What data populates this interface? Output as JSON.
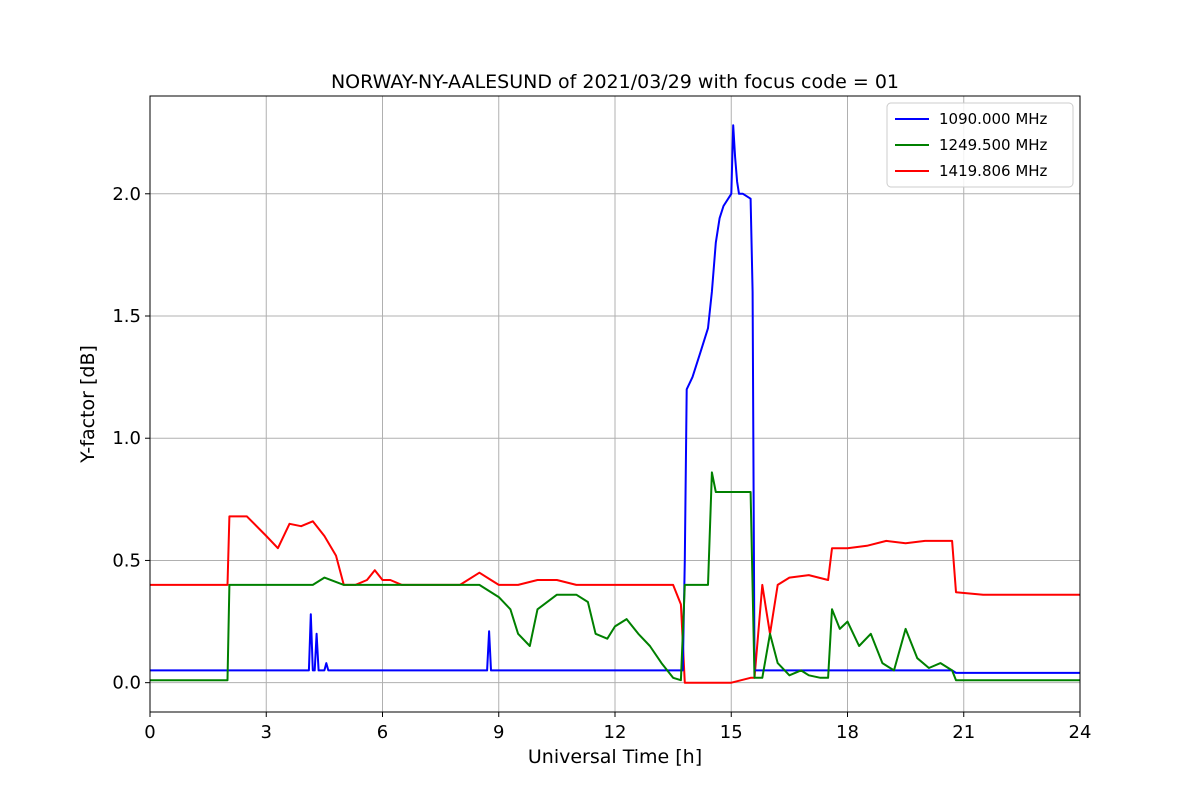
{
  "chart_data": {
    "type": "line",
    "title": "NORWAY-NY-AALESUND of 2021/03/29 with focus code = 01",
    "xlabel": "Universal Time [h]",
    "ylabel": "Y-factor [dB]",
    "xlim": [
      0,
      24
    ],
    "ylim": [
      -0.12,
      2.4
    ],
    "xticks": [
      0,
      3,
      6,
      9,
      12,
      15,
      18,
      21,
      24
    ],
    "xtick_labels": [
      "0",
      "3",
      "6",
      "9",
      "12",
      "15",
      "18",
      "21",
      "24"
    ],
    "yticks": [
      0.0,
      0.5,
      1.0,
      1.5,
      2.0
    ],
    "ytick_labels": [
      "0.0",
      "0.5",
      "1.0",
      "1.5",
      "2.0"
    ],
    "grid": true,
    "legend_position": "top-right",
    "series": [
      {
        "name": "1090.000 MHz",
        "color": "#0000ff",
        "x": [
          0,
          0.3,
          0.5,
          1.5,
          2.0,
          2.05,
          4.1,
          4.15,
          4.2,
          4.25,
          4.3,
          4.35,
          4.4,
          4.45,
          4.5,
          4.55,
          4.6,
          5.0,
          8.7,
          8.75,
          8.8,
          9.0,
          9.05,
          9.1,
          9.5,
          13.4,
          13.75,
          13.8,
          13.85,
          14.0,
          14.2,
          14.4,
          14.5,
          14.6,
          14.7,
          14.8,
          15.0,
          15.05,
          15.1,
          15.15,
          15.2,
          15.3,
          15.5,
          15.55,
          15.6,
          15.7,
          16.0,
          20.7,
          20.8,
          21.0,
          24
        ],
        "y": [
          0.05,
          0.05,
          0.05,
          0.05,
          0.05,
          0.05,
          0.05,
          0.28,
          0.05,
          0.05,
          0.2,
          0.05,
          0.05,
          0.05,
          0.05,
          0.08,
          0.05,
          0.05,
          0.05,
          0.21,
          0.05,
          0.05,
          0.05,
          0.05,
          0.05,
          0.05,
          0.05,
          0.5,
          1.2,
          1.25,
          1.35,
          1.45,
          1.6,
          1.8,
          1.9,
          1.95,
          2.0,
          2.28,
          2.15,
          2.05,
          2.0,
          2.0,
          1.98,
          1.6,
          0.05,
          0.05,
          0.05,
          0.05,
          0.04,
          0.04,
          0.04
        ]
      },
      {
        "name": "1249.500 MHz",
        "color": "#008000",
        "x": [
          0,
          2.0,
          2.05,
          4.2,
          4.5,
          5.0,
          8.5,
          9.0,
          9.3,
          9.5,
          9.8,
          10.0,
          10.5,
          11.0,
          11.3,
          11.5,
          11.8,
          12.0,
          12.3,
          12.6,
          12.9,
          13.2,
          13.5,
          13.7,
          13.8,
          14.0,
          14.4,
          14.5,
          14.6,
          14.8,
          15.0,
          15.5,
          15.6,
          15.8,
          16.0,
          16.2,
          16.5,
          16.8,
          17.0,
          17.3,
          17.5,
          17.6,
          17.8,
          18.0,
          18.3,
          18.6,
          18.9,
          19.2,
          19.5,
          19.8,
          20.1,
          20.4,
          20.7,
          20.8,
          24
        ],
        "y": [
          0.01,
          0.01,
          0.4,
          0.4,
          0.43,
          0.4,
          0.4,
          0.35,
          0.3,
          0.2,
          0.15,
          0.3,
          0.36,
          0.36,
          0.33,
          0.2,
          0.18,
          0.23,
          0.26,
          0.2,
          0.15,
          0.08,
          0.02,
          0.01,
          0.4,
          0.4,
          0.4,
          0.86,
          0.78,
          0.78,
          0.78,
          0.78,
          0.02,
          0.02,
          0.2,
          0.08,
          0.03,
          0.05,
          0.03,
          0.02,
          0.02,
          0.3,
          0.22,
          0.25,
          0.15,
          0.2,
          0.08,
          0.05,
          0.22,
          0.1,
          0.06,
          0.08,
          0.05,
          0.01,
          0.01
        ]
      },
      {
        "name": "1419.806 MHz",
        "color": "#ff0000",
        "x": [
          0,
          2.0,
          2.05,
          2.5,
          3.0,
          3.3,
          3.6,
          3.9,
          4.2,
          4.5,
          4.8,
          5.0,
          5.3,
          5.6,
          5.8,
          6.0,
          6.2,
          6.5,
          7.0,
          8.0,
          8.5,
          8.8,
          9.0,
          9.5,
          10.0,
          10.5,
          11.0,
          12.0,
          13.0,
          13.5,
          13.7,
          13.8,
          14.0,
          14.5,
          15.0,
          15.5,
          15.6,
          15.8,
          15.9,
          16.0,
          16.2,
          16.5,
          17.0,
          17.5,
          17.6,
          18.0,
          18.5,
          19.0,
          19.5,
          20.0,
          20.5,
          20.7,
          20.8,
          21.5,
          22.5,
          24
        ],
        "y": [
          0.4,
          0.4,
          0.68,
          0.68,
          0.6,
          0.55,
          0.65,
          0.64,
          0.66,
          0.6,
          0.52,
          0.4,
          0.4,
          0.42,
          0.46,
          0.42,
          0.42,
          0.4,
          0.4,
          0.4,
          0.45,
          0.42,
          0.4,
          0.4,
          0.42,
          0.42,
          0.4,
          0.4,
          0.4,
          0.4,
          0.32,
          0.0,
          0.0,
          0.0,
          0.0,
          0.02,
          0.02,
          0.4,
          0.3,
          0.2,
          0.4,
          0.43,
          0.44,
          0.42,
          0.55,
          0.55,
          0.56,
          0.58,
          0.57,
          0.58,
          0.58,
          0.58,
          0.37,
          0.36,
          0.36,
          0.36
        ]
      }
    ]
  }
}
